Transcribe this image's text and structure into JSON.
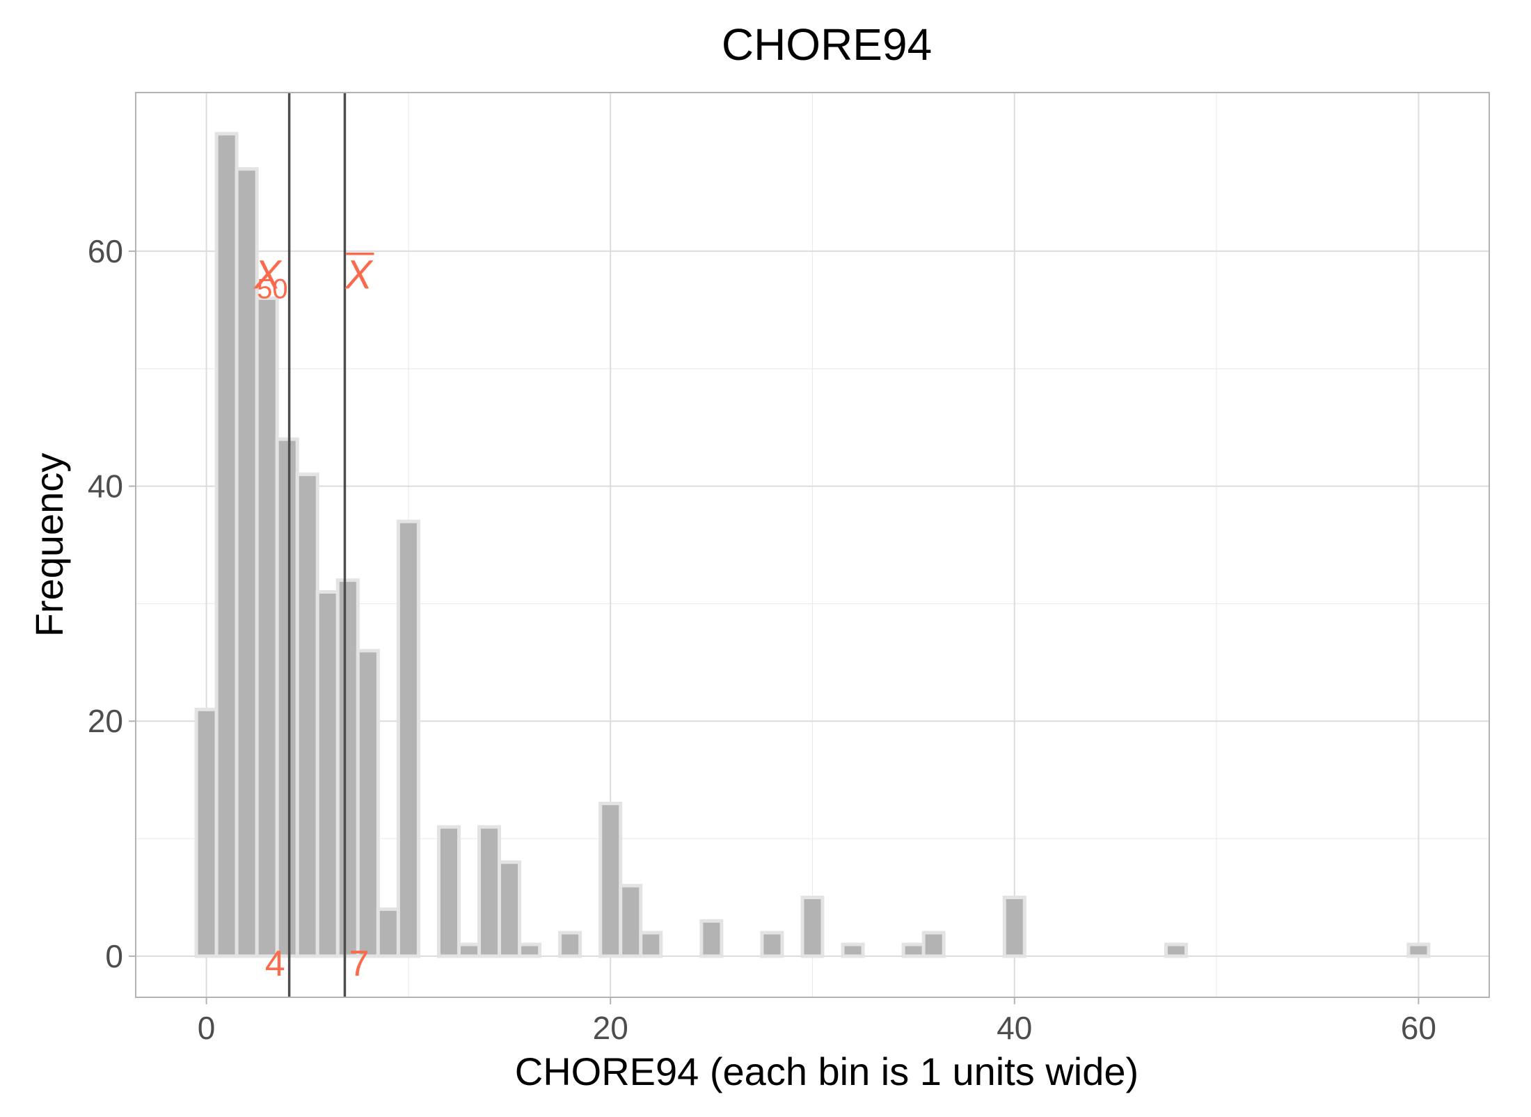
{
  "chart_data": {
    "type": "bar",
    "title": "CHORE94",
    "xlabel": "CHORE94 (each bin is 1 units wide)",
    "ylabel": "Frequency",
    "xlim": [
      -3.5,
      63.5
    ],
    "ylim": [
      -3.5,
      73.5
    ],
    "x_ticks": [
      0,
      20,
      40,
      60
    ],
    "y_ticks": [
      0,
      20,
      40,
      60
    ],
    "bin_width": 1,
    "bins": [
      {
        "x": 0,
        "count": 21
      },
      {
        "x": 1,
        "count": 70
      },
      {
        "x": 2,
        "count": 67
      },
      {
        "x": 3,
        "count": 56
      },
      {
        "x": 4,
        "count": 44
      },
      {
        "x": 5,
        "count": 41
      },
      {
        "x": 6,
        "count": 31
      },
      {
        "x": 7,
        "count": 32
      },
      {
        "x": 8,
        "count": 26
      },
      {
        "x": 9,
        "count": 4
      },
      {
        "x": 10,
        "count": 37
      },
      {
        "x": 11,
        "count": 0
      },
      {
        "x": 12,
        "count": 11
      },
      {
        "x": 13,
        "count": 1
      },
      {
        "x": 14,
        "count": 11
      },
      {
        "x": 15,
        "count": 8
      },
      {
        "x": 16,
        "count": 1
      },
      {
        "x": 17,
        "count": 0
      },
      {
        "x": 18,
        "count": 2
      },
      {
        "x": 19,
        "count": 0
      },
      {
        "x": 20,
        "count": 13
      },
      {
        "x": 21,
        "count": 6
      },
      {
        "x": 22,
        "count": 2
      },
      {
        "x": 23,
        "count": 0
      },
      {
        "x": 24,
        "count": 0
      },
      {
        "x": 25,
        "count": 3
      },
      {
        "x": 26,
        "count": 0
      },
      {
        "x": 27,
        "count": 0
      },
      {
        "x": 28,
        "count": 2
      },
      {
        "x": 29,
        "count": 0
      },
      {
        "x": 30,
        "count": 5
      },
      {
        "x": 31,
        "count": 0
      },
      {
        "x": 32,
        "count": 1
      },
      {
        "x": 33,
        "count": 0
      },
      {
        "x": 34,
        "count": 0
      },
      {
        "x": 35,
        "count": 1
      },
      {
        "x": 36,
        "count": 2
      },
      {
        "x": 37,
        "count": 0
      },
      {
        "x": 38,
        "count": 0
      },
      {
        "x": 39,
        "count": 0
      },
      {
        "x": 40,
        "count": 5
      },
      {
        "x": 41,
        "count": 0
      },
      {
        "x": 42,
        "count": 0
      },
      {
        "x": 43,
        "count": 0
      },
      {
        "x": 44,
        "count": 0
      },
      {
        "x": 45,
        "count": 0
      },
      {
        "x": 46,
        "count": 0
      },
      {
        "x": 47,
        "count": 0
      },
      {
        "x": 48,
        "count": 1
      },
      {
        "x": 49,
        "count": 0
      },
      {
        "x": 50,
        "count": 0
      },
      {
        "x": 51,
        "count": 0
      },
      {
        "x": 52,
        "count": 0
      },
      {
        "x": 53,
        "count": 0
      },
      {
        "x": 54,
        "count": 0
      },
      {
        "x": 55,
        "count": 0
      },
      {
        "x": 56,
        "count": 0
      },
      {
        "x": 57,
        "count": 0
      },
      {
        "x": 58,
        "count": 0
      },
      {
        "x": 59,
        "count": 0
      },
      {
        "x": 60,
        "count": 1
      }
    ],
    "reference_lines": [
      {
        "name": "median",
        "x": 4.1,
        "symbol": "X",
        "subscript": "50",
        "value_label": "4"
      },
      {
        "name": "mean",
        "x": 6.85,
        "symbol": "X",
        "overline": true,
        "value_label": "7"
      }
    ],
    "grid": true,
    "colors": {
      "bar_fill": "#b3b3b3",
      "bar_outline": "#e3e3e3",
      "reference_line": "#4d4d4d",
      "annotation": "#fa6a4c",
      "grid": "#ebebeb",
      "panel_border": "#b3b3b3"
    }
  }
}
